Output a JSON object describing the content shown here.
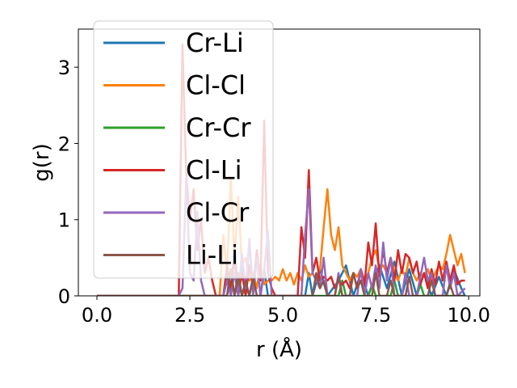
{
  "chart_data": {
    "type": "line",
    "xlabel": "r (Å)",
    "ylabel": "g(r)",
    "xlim": [
      -0.5,
      10.3
    ],
    "ylim": [
      0,
      3.5
    ],
    "xticks": [
      "0.0",
      "2.5",
      "5.0",
      "7.5",
      "10.0"
    ],
    "xtick_values": [
      0,
      2.5,
      5,
      7.5,
      10
    ],
    "yticks": [
      "0",
      "1",
      "2",
      "3"
    ],
    "ytick_values": [
      0,
      1,
      2,
      3
    ],
    "legend_position": "upper-left",
    "series": [
      {
        "name": "Cr-Li",
        "color": "#1f77b4",
        "points": [
          [
            0,
            0
          ],
          [
            3.4,
            0
          ],
          [
            3.5,
            0.3
          ],
          [
            3.6,
            0
          ],
          [
            3.7,
            0.65
          ],
          [
            3.8,
            0
          ],
          [
            3.9,
            0.4
          ],
          [
            4.0,
            0
          ],
          [
            4.1,
            0.7
          ],
          [
            4.2,
            0.1
          ],
          [
            4.3,
            0.5
          ],
          [
            4.4,
            0
          ],
          [
            4.5,
            0.35
          ],
          [
            4.6,
            0
          ],
          [
            4.7,
            0
          ],
          [
            5.6,
            0
          ],
          [
            5.7,
            0.3
          ],
          [
            5.8,
            0
          ],
          [
            6.0,
            0.35
          ],
          [
            6.2,
            0
          ],
          [
            6.5,
            0.2
          ],
          [
            6.7,
            0.4
          ],
          [
            6.9,
            0
          ],
          [
            7.1,
            0.3
          ],
          [
            7.3,
            0
          ],
          [
            7.6,
            0.4
          ],
          [
            7.8,
            0.1
          ],
          [
            8.0,
            0.45
          ],
          [
            8.2,
            0
          ],
          [
            8.4,
            0.35
          ],
          [
            8.6,
            0
          ],
          [
            8.8,
            0.3
          ],
          [
            9.0,
            0
          ],
          [
            9.2,
            0.25
          ],
          [
            9.4,
            0
          ],
          [
            9.6,
            0.35
          ],
          [
            9.8,
            0.1
          ],
          [
            9.9,
            0
          ]
        ]
      },
      {
        "name": "Cl-Cl",
        "color": "#ff7f0e",
        "points": [
          [
            0,
            0
          ],
          [
            3.3,
            0
          ],
          [
            3.4,
            0.8
          ],
          [
            3.5,
            0.3
          ],
          [
            3.6,
            1.55
          ],
          [
            3.7,
            0.5
          ],
          [
            3.8,
            1.3
          ],
          [
            3.9,
            0.4
          ],
          [
            4.0,
            0.5
          ],
          [
            4.1,
            0.2
          ],
          [
            4.2,
            0.3
          ],
          [
            4.3,
            0.1
          ],
          [
            4.4,
            0.4
          ],
          [
            4.5,
            0.15
          ],
          [
            4.6,
            0.2
          ],
          [
            4.7,
            0.2
          ],
          [
            4.8,
            0.25
          ],
          [
            4.9,
            0.2
          ],
          [
            5.0,
            0.35
          ],
          [
            5.1,
            0.2
          ],
          [
            5.2,
            0.3
          ],
          [
            5.3,
            0.15
          ],
          [
            5.4,
            0.3
          ],
          [
            5.5,
            0.2
          ],
          [
            5.6,
            0.4
          ],
          [
            5.7,
            0.25
          ],
          [
            5.8,
            0.3
          ],
          [
            5.9,
            0.2
          ],
          [
            6.0,
            0.35
          ],
          [
            6.1,
            0.9
          ],
          [
            6.2,
            1.4
          ],
          [
            6.3,
            0.8
          ],
          [
            6.4,
            0.6
          ],
          [
            6.5,
            0.9
          ],
          [
            6.6,
            0.4
          ],
          [
            6.7,
            0.3
          ],
          [
            6.8,
            0.2
          ],
          [
            6.9,
            0.3
          ],
          [
            7.0,
            0.25
          ],
          [
            7.1,
            0.35
          ],
          [
            7.2,
            0.2
          ],
          [
            7.3,
            0.3
          ],
          [
            7.4,
            0.5
          ],
          [
            7.5,
            0.6
          ],
          [
            7.6,
            0.35
          ],
          [
            7.7,
            0.4
          ],
          [
            7.8,
            0.3
          ],
          [
            7.9,
            0.5
          ],
          [
            8.0,
            0.3
          ],
          [
            8.1,
            0.2
          ],
          [
            8.2,
            0.35
          ],
          [
            8.3,
            0.25
          ],
          [
            8.4,
            0.5
          ],
          [
            8.5,
            0.3
          ],
          [
            8.6,
            0.2
          ],
          [
            8.7,
            0.3
          ],
          [
            8.8,
            0.25
          ],
          [
            8.9,
            0.35
          ],
          [
            9.0,
            0.2
          ],
          [
            9.1,
            0.3
          ],
          [
            9.2,
            0.4
          ],
          [
            9.3,
            0.35
          ],
          [
            9.4,
            0.55
          ],
          [
            9.5,
            0.8
          ],
          [
            9.6,
            0.6
          ],
          [
            9.7,
            0.4
          ],
          [
            9.8,
            0.55
          ],
          [
            9.9,
            0.3
          ]
        ]
      },
      {
        "name": "Cr-Cr",
        "color": "#2ca02c",
        "points": [
          [
            0,
            0
          ],
          [
            3.5,
            0
          ],
          [
            3.6,
            0.35
          ],
          [
            3.7,
            0
          ],
          [
            3.8,
            0.2
          ],
          [
            3.9,
            0
          ],
          [
            4.0,
            0.15
          ],
          [
            4.1,
            0
          ],
          [
            6.5,
            0
          ],
          [
            6.6,
            0.2
          ],
          [
            6.7,
            0
          ],
          [
            7.3,
            0
          ],
          [
            7.4,
            0.15
          ],
          [
            7.5,
            0
          ],
          [
            7.9,
            0
          ],
          [
            8.0,
            0.2
          ],
          [
            8.1,
            0
          ],
          [
            8.6,
            0
          ],
          [
            8.7,
            0.15
          ],
          [
            8.8,
            0
          ],
          [
            9.9,
            0
          ]
        ]
      },
      {
        "name": "Cl-Li",
        "color": "#d62728",
        "points": [
          [
            0,
            0
          ],
          [
            2.2,
            0
          ],
          [
            2.3,
            3.3
          ],
          [
            2.4,
            1.6
          ],
          [
            2.5,
            1.0
          ],
          [
            2.6,
            1.4
          ],
          [
            2.7,
            0.6
          ],
          [
            2.8,
            1.0
          ],
          [
            2.9,
            0.3
          ],
          [
            3.0,
            0.5
          ],
          [
            3.1,
            0.2
          ],
          [
            3.2,
            0
          ],
          [
            3.4,
            0
          ],
          [
            3.5,
            0.4
          ],
          [
            3.6,
            0.1
          ],
          [
            3.7,
            0.5
          ],
          [
            3.8,
            0
          ],
          [
            3.9,
            0.3
          ],
          [
            4.0,
            0
          ],
          [
            4.1,
            0.4
          ],
          [
            4.2,
            0.1
          ],
          [
            4.3,
            0.6
          ],
          [
            4.4,
            0.2
          ],
          [
            4.5,
            2.3
          ],
          [
            4.6,
            0.3
          ],
          [
            4.7,
            0.1
          ],
          [
            4.8,
            0
          ],
          [
            5.4,
            0
          ],
          [
            5.5,
            0.9
          ],
          [
            5.6,
            0.5
          ],
          [
            5.7,
            1.65
          ],
          [
            5.8,
            0.3
          ],
          [
            5.9,
            0.5
          ],
          [
            6.0,
            0.2
          ],
          [
            6.1,
            0.25
          ],
          [
            6.2,
            0.2
          ],
          [
            6.3,
            0.25
          ],
          [
            6.4,
            0.1
          ],
          [
            6.5,
            0.2
          ],
          [
            6.6,
            0.15
          ],
          [
            6.7,
            0.2
          ],
          [
            6.8,
            0.1
          ],
          [
            6.9,
            0.3
          ],
          [
            7.0,
            0.1
          ],
          [
            7.1,
            0.35
          ],
          [
            7.2,
            0.15
          ],
          [
            7.3,
            0.7
          ],
          [
            7.4,
            0.4
          ],
          [
            7.5,
            0.95
          ],
          [
            7.6,
            0.25
          ],
          [
            7.7,
            0.6
          ],
          [
            7.8,
            0.3
          ],
          [
            7.9,
            0.5
          ],
          [
            8.0,
            0.2
          ],
          [
            8.1,
            0.6
          ],
          [
            8.2,
            0.3
          ],
          [
            8.3,
            0.55
          ],
          [
            8.4,
            0.5
          ],
          [
            8.5,
            0.3
          ],
          [
            8.6,
            0.45
          ],
          [
            8.7,
            0.15
          ],
          [
            8.8,
            0.3
          ],
          [
            8.9,
            0.1
          ],
          [
            9.0,
            0.35
          ],
          [
            9.1,
            0.15
          ],
          [
            9.2,
            0.45
          ],
          [
            9.3,
            0.2
          ],
          [
            9.4,
            0.45
          ],
          [
            9.5,
            0.2
          ],
          [
            9.6,
            0.4
          ],
          [
            9.7,
            0.15
          ],
          [
            9.8,
            0.2
          ],
          [
            9.9,
            0.2
          ]
        ]
      },
      {
        "name": "Cl-Cr",
        "color": "#9467bd",
        "points": [
          [
            0,
            0
          ],
          [
            2.2,
            0
          ],
          [
            2.3,
            0.1
          ],
          [
            2.4,
            1.55
          ],
          [
            2.5,
            0.3
          ],
          [
            2.6,
            0.2
          ],
          [
            2.7,
            1.1
          ],
          [
            2.8,
            0.2
          ],
          [
            2.9,
            0
          ],
          [
            3.4,
            0
          ],
          [
            3.5,
            0.2
          ],
          [
            3.6,
            0
          ],
          [
            3.7,
            0.3
          ],
          [
            3.8,
            0
          ],
          [
            3.9,
            0.55
          ],
          [
            4.0,
            0.1
          ],
          [
            4.1,
            0.75
          ],
          [
            4.2,
            0
          ],
          [
            4.3,
            0.5
          ],
          [
            4.4,
            0
          ],
          [
            4.5,
            0.35
          ],
          [
            4.6,
            0.85
          ],
          [
            4.7,
            0
          ],
          [
            5.5,
            0
          ],
          [
            5.6,
            0.8
          ],
          [
            5.7,
            1.4
          ],
          [
            5.8,
            0.3
          ],
          [
            5.9,
            0.2
          ],
          [
            6.0,
            0.1
          ],
          [
            6.1,
            0.5
          ],
          [
            6.2,
            0
          ],
          [
            6.4,
            0
          ],
          [
            6.5,
            0.3
          ],
          [
            6.6,
            0
          ],
          [
            7.0,
            0
          ],
          [
            7.1,
            0.35
          ],
          [
            7.2,
            0
          ],
          [
            7.3,
            0.3
          ],
          [
            7.4,
            0.1
          ],
          [
            7.5,
            0.4
          ],
          [
            7.6,
            0.1
          ],
          [
            7.7,
            0.7
          ],
          [
            7.8,
            0.2
          ],
          [
            7.9,
            0.5
          ],
          [
            8.0,
            0
          ],
          [
            8.2,
            0
          ],
          [
            8.3,
            0.3
          ],
          [
            8.4,
            0
          ],
          [
            8.6,
            0
          ],
          [
            8.7,
            0.25
          ],
          [
            8.8,
            0.5
          ],
          [
            8.9,
            0.2
          ],
          [
            9.0,
            0.3
          ],
          [
            9.1,
            0
          ],
          [
            9.3,
            0
          ],
          [
            9.4,
            0.4
          ],
          [
            9.5,
            0.1
          ],
          [
            9.6,
            0.3
          ],
          [
            9.7,
            0
          ],
          [
            9.9,
            0.1
          ]
        ]
      },
      {
        "name": "Li-Li",
        "color": "#8c564b",
        "points": [
          [
            0,
            0
          ],
          [
            3.5,
            0
          ],
          [
            3.6,
            0.35
          ],
          [
            3.7,
            0
          ],
          [
            3.8,
            0.3
          ],
          [
            3.9,
            0
          ],
          [
            4.0,
            0.2
          ],
          [
            4.1,
            0
          ],
          [
            4.2,
            0.25
          ],
          [
            4.3,
            0
          ],
          [
            5.8,
            0
          ],
          [
            5.9,
            0.3
          ],
          [
            6.0,
            0.1
          ],
          [
            6.1,
            0.2
          ],
          [
            6.2,
            0
          ],
          [
            6.4,
            0
          ],
          [
            6.5,
            0.25
          ],
          [
            6.6,
            0
          ],
          [
            6.8,
            0
          ],
          [
            6.9,
            0.3
          ],
          [
            7.0,
            0.1
          ],
          [
            7.1,
            0.2
          ],
          [
            7.2,
            0
          ],
          [
            7.4,
            0
          ],
          [
            7.5,
            0.3
          ],
          [
            7.6,
            0
          ],
          [
            7.8,
            0
          ],
          [
            7.9,
            0.2
          ],
          [
            8.0,
            0
          ],
          [
            8.3,
            0
          ],
          [
            8.4,
            0.25
          ],
          [
            8.5,
            0
          ],
          [
            8.9,
            0
          ],
          [
            9.0,
            0.2
          ],
          [
            9.1,
            0
          ],
          [
            9.4,
            0
          ],
          [
            9.5,
            0.15
          ],
          [
            9.6,
            0
          ],
          [
            9.9,
            0
          ]
        ]
      }
    ]
  }
}
